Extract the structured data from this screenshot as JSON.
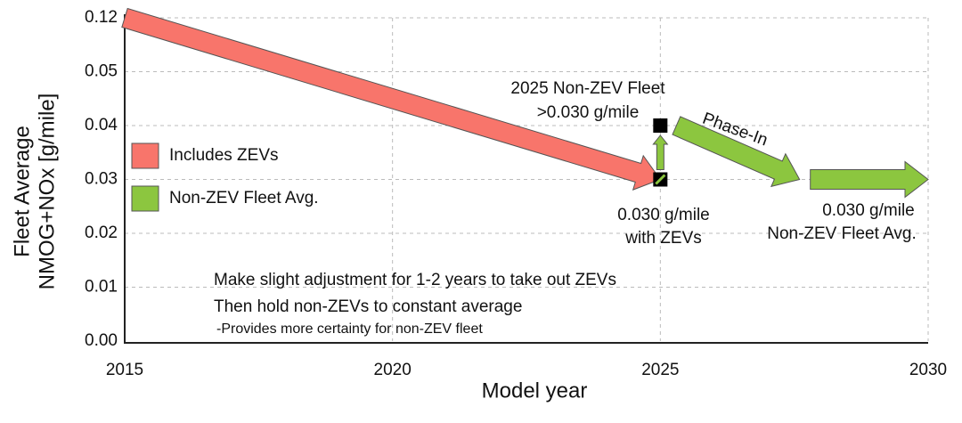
{
  "chart_data": {
    "type": "line",
    "ylabel": [
      "Fleet Average",
      "NMOG+NOx [g/mile]"
    ],
    "xlabel": "Model year",
    "xlim": [
      2015,
      2030
    ],
    "xticks": [
      2015,
      2020,
      2025,
      2030
    ],
    "yticks": [
      {
        "value": 0,
        "label": "0.00"
      },
      0.01,
      0.02,
      0.03,
      0.04,
      0.05,
      0.12
    ],
    "grid": true,
    "series": [
      {
        "name": "Includes ZEVs",
        "color": "#f8756b",
        "x": [
          2015,
          2025
        ],
        "values": [
          0.12,
          0.03
        ]
      },
      {
        "name": "Non-ZEV Fleet Avg.",
        "color": "#8cc63f",
        "x": [
          2025.3,
          2027.6,
          2027.7,
          2027.8,
          2030
        ],
        "values": [
          0.04,
          0.03,
          null,
          0.03,
          0.03
        ]
      }
    ],
    "points": {
      "x": [
        2025,
        2025
      ],
      "values": [
        0.04,
        0.03
      ]
    },
    "annotations": [
      "2025 Non-ZEV Fleet",
      ">0.030 g/mile",
      "Phase-In",
      "0.030 g/mile",
      "with ZEVs",
      "0.030 g/mile",
      "Non-ZEV Fleet Avg.",
      "Make slight adjustment for 1-2 years to take out ZEVs",
      "Then hold non-ZEVs to constant average",
      "-Provides more certainty for non-ZEV fleet"
    ]
  }
}
